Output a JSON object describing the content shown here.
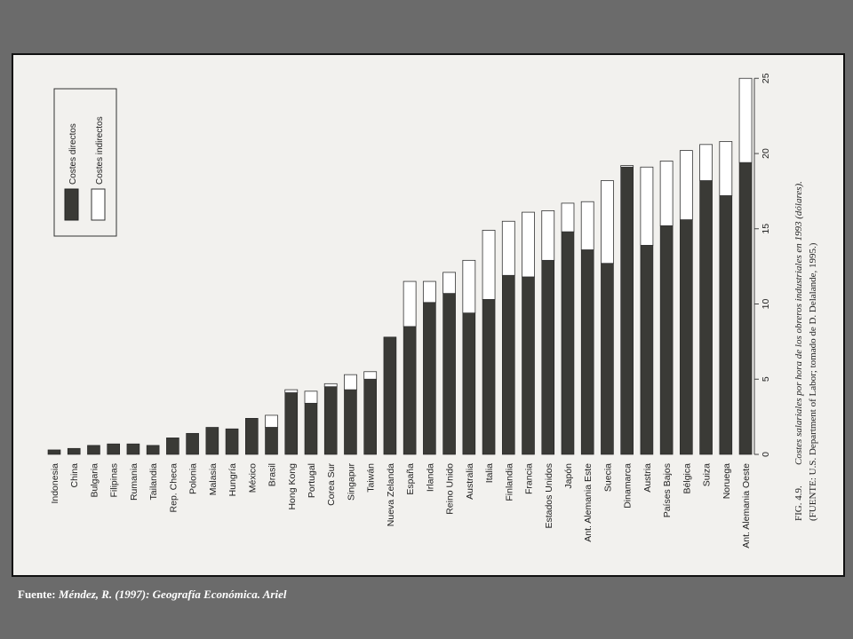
{
  "source_note": {
    "label": "Fuente:",
    "text": "Méndez, R. (1997): Geografía Económica. Ariel"
  },
  "figure": {
    "fig_label": "FIG. 4.9.",
    "caption": "Costes salariales por hora de los obreros industriales en 1993 (dólares).",
    "source_line": "(FUENTE: U.S. Department of Labor; tomado de D. Delalande, 1995.)"
  },
  "colors": {
    "frame_background": "#6b6b6b",
    "paper": "#f2f1ee",
    "direct_cost_fill": "#3a3a36",
    "indirect_cost_fill": "#ffffff",
    "source_text": "#ffffff"
  },
  "chart_data": {
    "type": "bar",
    "orientation": "horizontal stacked bars (page rotated 90°)",
    "stacked": true,
    "categories": [
      "Indonesia",
      "China",
      "Bulgaria",
      "Filipinas",
      "Rumania",
      "Tailandia",
      "Rep. Checa",
      "Polonia",
      "Malasia",
      "Hungría",
      "México",
      "Brasil",
      "Hong Kong",
      "Portugal",
      "Corea Sur",
      "Singapur",
      "Taiwán",
      "Nueva Zelanda",
      "España",
      "Irlanda",
      "Reino Unido",
      "Australia",
      "Italia",
      "Finlandia",
      "Francia",
      "Estados Unidos",
      "Japón",
      "Ant. Alemania Este",
      "Suecia",
      "Dinamarca",
      "Austria",
      "Países Bajos",
      "Bélgica",
      "Suiza",
      "Noruega",
      "Ant. Alemania Oeste"
    ],
    "series": [
      {
        "name": "Costes directos",
        "values": [
          0.3,
          0.4,
          0.6,
          0.7,
          0.7,
          0.6,
          1.1,
          1.4,
          1.8,
          1.7,
          2.4,
          1.8,
          4.1,
          3.4,
          4.5,
          4.3,
          5.0,
          7.8,
          8.5,
          10.1,
          10.7,
          9.4,
          10.3,
          11.9,
          11.8,
          12.9,
          14.8,
          13.6,
          12.7,
          19.1,
          13.9,
          15.2,
          15.6,
          18.2,
          17.2,
          19.4
        ]
      },
      {
        "name": "Costes indirectos",
        "values": [
          0,
          0,
          0,
          0,
          0,
          0,
          0,
          0,
          0,
          0,
          0,
          0.8,
          0.2,
          0.8,
          0.2,
          1.0,
          0.5,
          0,
          3.0,
          1.4,
          1.4,
          3.5,
          4.6,
          3.6,
          4.3,
          3.3,
          1.9,
          3.2,
          5.5,
          0.1,
          5.2,
          4.3,
          4.6,
          2.4,
          3.6,
          5.6
        ]
      }
    ],
    "legend": [
      "Costes directos",
      "Costes indirectos"
    ],
    "legend_position": "top-left",
    "value_axis": {
      "range": [
        0,
        25
      ],
      "ticks": [
        0,
        5,
        10,
        15,
        20,
        25
      ],
      "position": "right"
    },
    "grid": false
  }
}
